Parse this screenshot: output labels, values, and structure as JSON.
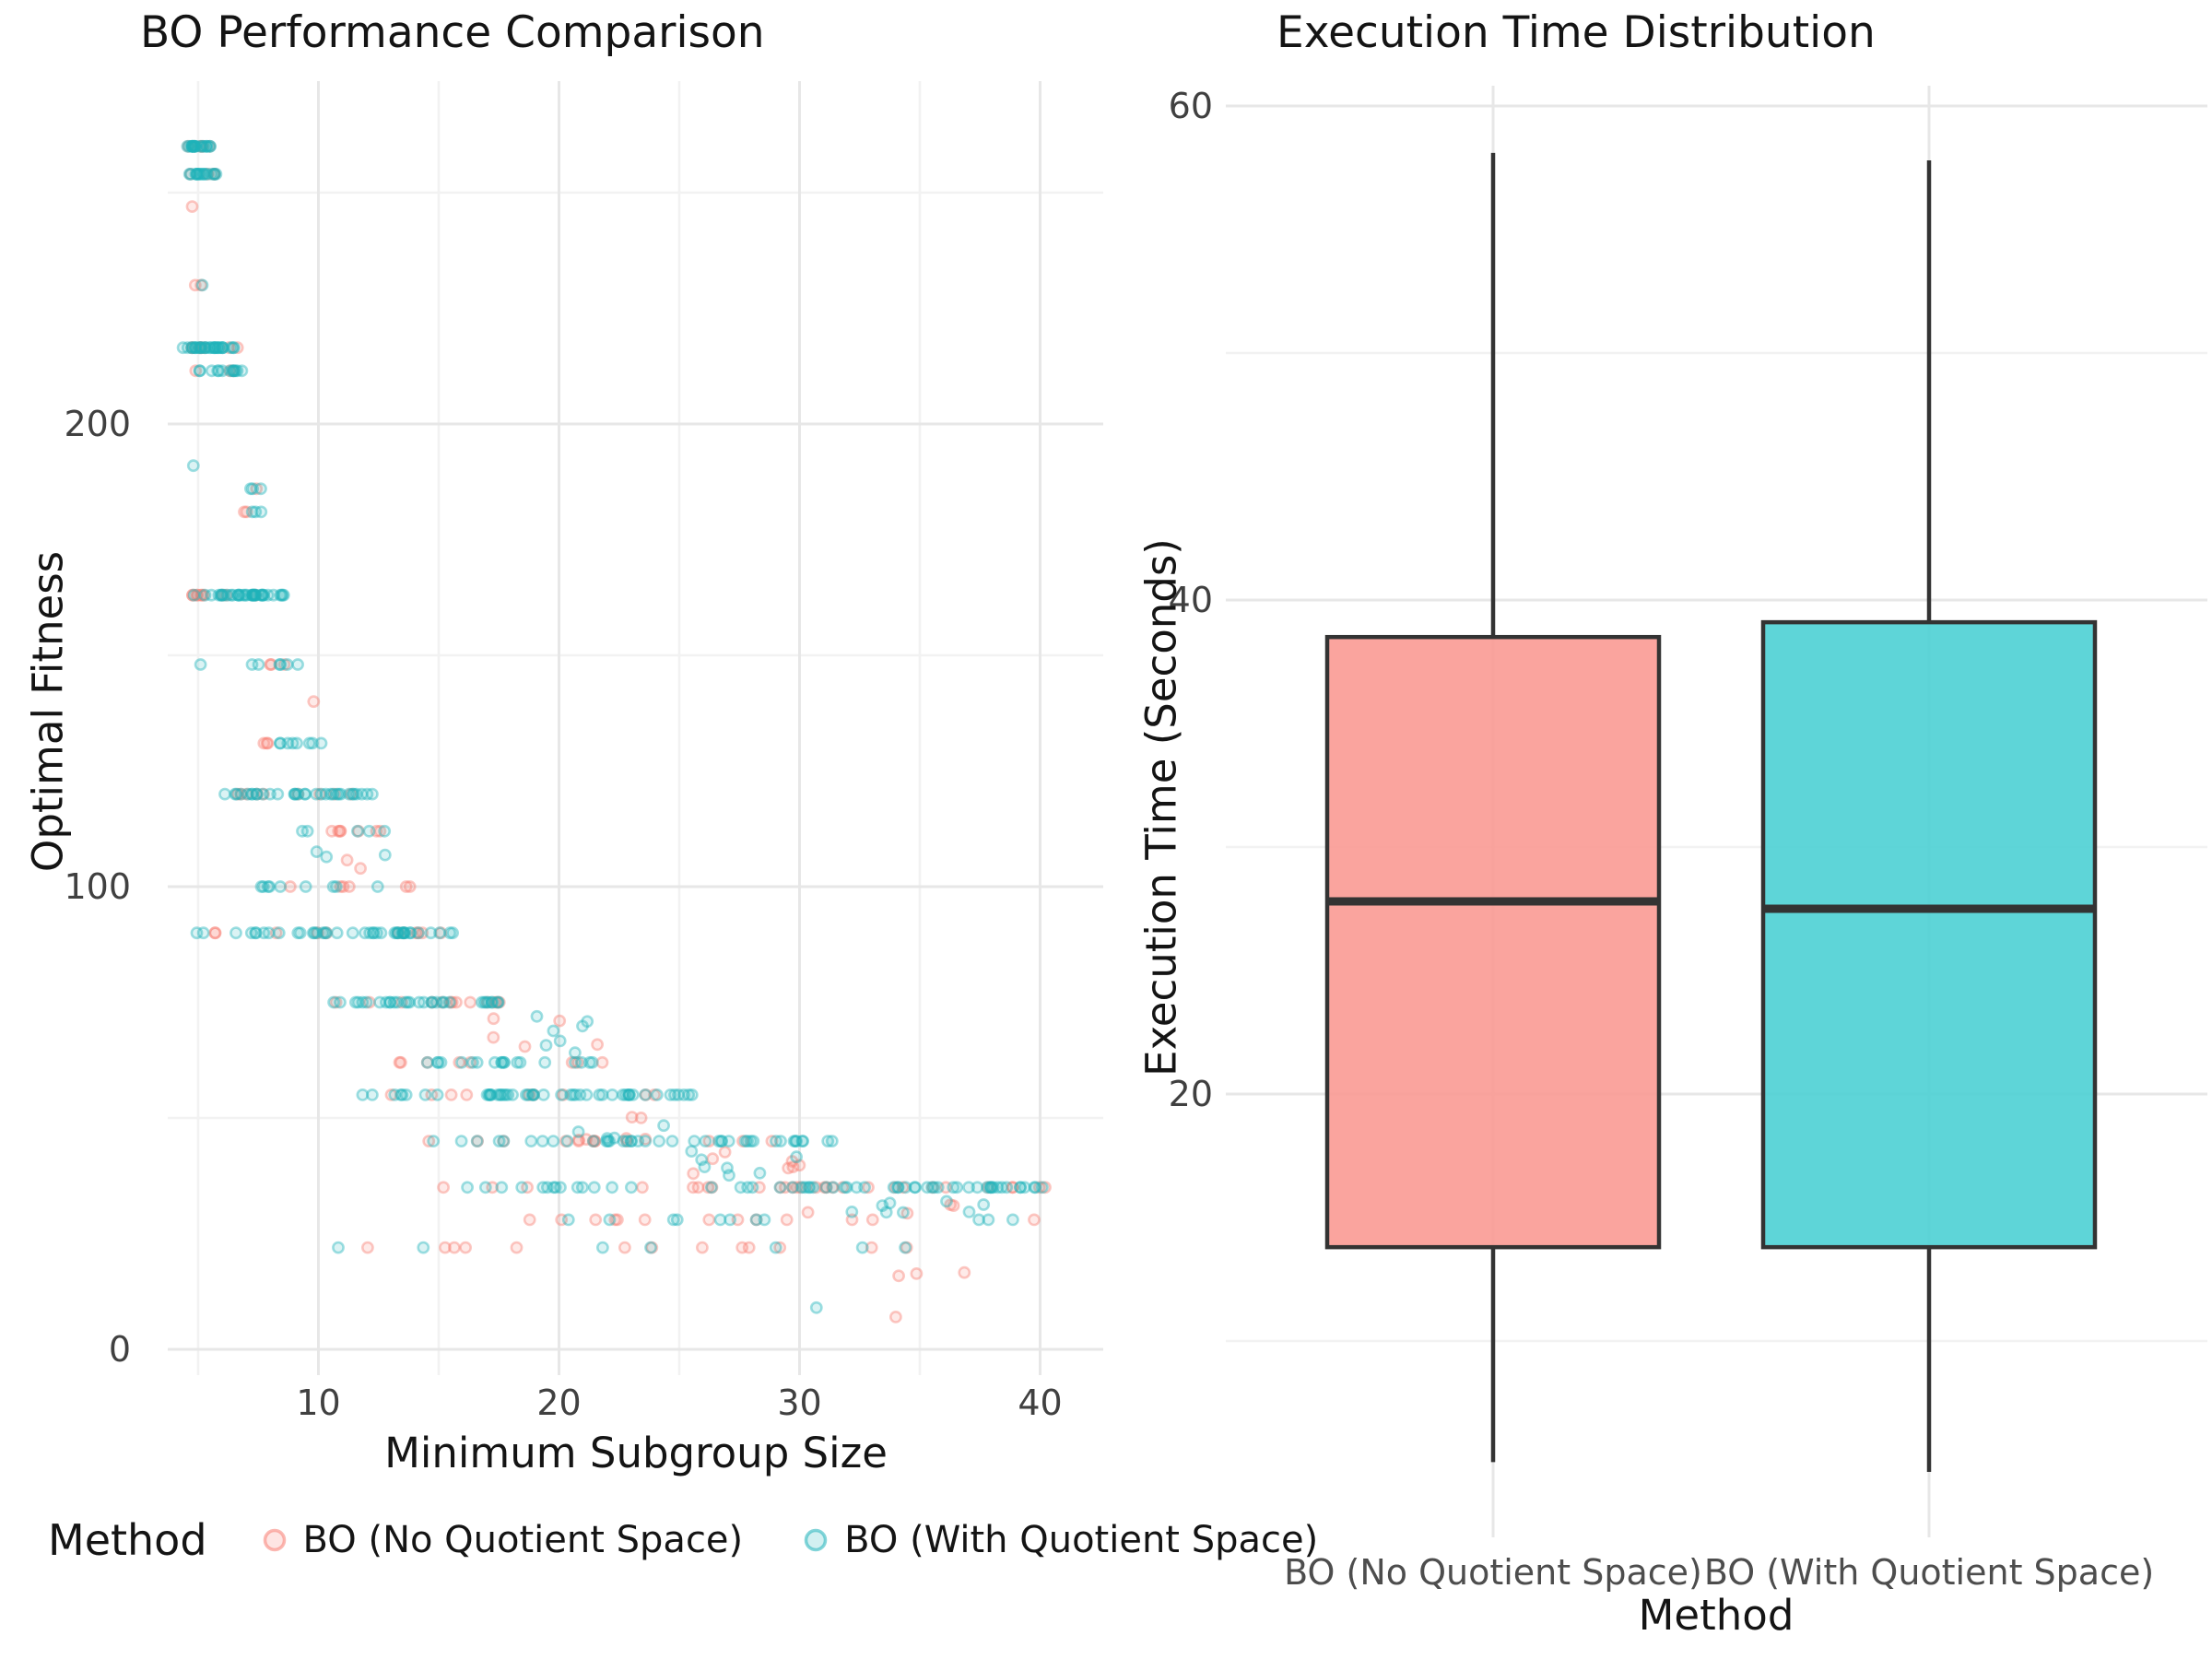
{
  "figure": {
    "background": "#ffffff"
  },
  "colors": {
    "title_text": "#141414",
    "tick_text": "#404040",
    "category_text": "#4d4d4d",
    "grid_major": "#e7e7e7",
    "grid_minor": "#f2f2f2",
    "box_border": "#333333",
    "pink_box_fill": "#F99A94",
    "teal_box_fill": "#4CD0D4",
    "pink_marker": "#F87E72",
    "teal_marker": "#1FB3BA"
  },
  "legend": {
    "title": "Method",
    "items": [
      {
        "label": "BO (No Quotient Space)",
        "color": "#F87E72"
      },
      {
        "label": "BO (With Quotient Space)",
        "color": "#1FB3BA"
      }
    ]
  },
  "chart_data": [
    {
      "type": "scatter",
      "title": "BO Performance Comparison",
      "xlabel": "Minimum Subgroup Size",
      "ylabel": "Optimal Fitness",
      "xlim": [
        3.7,
        42.6
      ],
      "ylim": [
        -5.6,
        274
      ],
      "x_major_ticks": [
        10,
        20,
        30,
        40
      ],
      "x_gridlines": [
        5,
        10,
        15,
        20,
        25,
        30,
        35,
        40
      ],
      "y_major_ticks": [
        0,
        100,
        200
      ],
      "y_gridlines_major": [
        0,
        100,
        200
      ],
      "y_gridlines_minor": [
        50,
        150,
        250
      ],
      "grid": true,
      "legend_position": "bottom-left",
      "series": [
        {
          "name": "BO (No Quotient Space)",
          "color": "#F87E72"
        },
        {
          "name": "BO (With Quotient Space)",
          "color": "#1FB3BA"
        }
      ],
      "marker": {
        "radius": 5.6,
        "stroke_width": 2.6,
        "stroke_alpha": 0.42,
        "fill_alpha": 0.16
      },
      "seed": 42,
      "bands_format": "[fitness_y, x_min, x_max, n_points, pink_fraction] - horizontal bands of jittered points",
      "bands": [
        [
          260,
          4.55,
          5.65,
          26,
          0.25
        ],
        [
          254,
          4.55,
          5.75,
          20,
          0.25
        ],
        [
          230,
          4.7,
          5.3,
          3,
          0.6
        ],
        [
          216.5,
          4.35,
          6.7,
          38,
          0.18
        ],
        [
          211.5,
          4.75,
          6.85,
          16,
          0.3
        ],
        [
          186,
          6.95,
          7.65,
          4,
          0.5
        ],
        [
          181,
          6.9,
          7.65,
          5,
          0.5
        ],
        [
          163,
          4.6,
          5.8,
          10,
          0.5
        ],
        [
          163,
          5.8,
          8.6,
          38,
          0.15
        ],
        [
          148,
          6.75,
          9.4,
          9,
          0.45
        ],
        [
          131,
          7.6,
          10.6,
          11,
          0.35
        ],
        [
          120,
          5.9,
          12.3,
          42,
          0.2
        ],
        [
          112,
          8.6,
          13.2,
          12,
          0.4
        ],
        [
          100,
          7.6,
          14.3,
          14,
          0.55
        ],
        [
          90,
          4.9,
          10.0,
          18,
          0.45
        ],
        [
          90,
          10.0,
          15.6,
          34,
          0.15
        ],
        [
          75,
          10.6,
          17.6,
          44,
          0.3
        ],
        [
          62,
          13.0,
          21.8,
          26,
          0.4
        ],
        [
          55,
          11.6,
          17.0,
          12,
          0.45
        ],
        [
          55,
          17.0,
          25.6,
          46,
          0.15
        ],
        [
          45,
          14.0,
          18.0,
          8,
          0.5
        ],
        [
          45,
          18.0,
          31.6,
          44,
          0.25
        ],
        [
          35,
          14.6,
          28.0,
          25,
          0.45
        ],
        [
          35,
          27.5,
          40.5,
          63,
          0.3
        ],
        [
          28,
          17.0,
          40.3,
          24,
          0.5
        ],
        [
          22,
          8.0,
          40.0,
          20,
          0.5
        ]
      ],
      "clouds_format": "[x_min, x_max, y_min, y_max, n_points, pink_fraction] - diffuse point clouds",
      "clouds": [
        [
          9.5,
          13,
          103,
          108,
          5,
          0.5
        ],
        [
          17,
          22,
          64,
          72,
          12,
          0.45
        ],
        [
          20.5,
          24.5,
          45,
          52,
          10,
          0.4
        ],
        [
          25,
          30,
          37,
          43,
          14,
          0.45
        ],
        [
          30,
          38,
          29,
          33,
          12,
          0.45
        ],
        [
          33,
          37,
          15,
          18,
          3,
          0.5
        ]
      ],
      "singles_format": "[x, y, series p=pink t=teal]",
      "singles": [
        [
          4.75,
          247,
          "p"
        ],
        [
          4.8,
          191,
          "t"
        ],
        [
          5.1,
          148,
          "t"
        ],
        [
          9.8,
          140,
          "p"
        ],
        [
          30.7,
          9,
          "t"
        ],
        [
          34,
          7,
          "p"
        ],
        [
          21.8,
          62,
          "p"
        ],
        [
          13.8,
          100,
          "p"
        ]
      ]
    },
    {
      "type": "box",
      "title": "Execution Time Distribution",
      "xlabel": "Method",
      "ylabel": "Execution Time (Seconds)",
      "categories": [
        "BO (No Quotient Space)",
        "BO (With Quotient Space)"
      ],
      "y_major_ticks": [
        20,
        40,
        60
      ],
      "y_gridlines_minor": [
        10,
        30,
        50
      ],
      "ylim": [
        2,
        61
      ],
      "grid": true,
      "box_fill_opacity": 0.9,
      "boxes": [
        {
          "category": "BO (No Quotient Space)",
          "fill": "#F99A94",
          "whisker_low": 5.1,
          "q1": 13.8,
          "median": 27.8,
          "q3": 38.5,
          "whisker_high": 58.1
        },
        {
          "category": "BO (With Quotient Space)",
          "fill": "#4CD0D4",
          "whisker_low": 4.7,
          "q1": 13.8,
          "median": 27.5,
          "q3": 39.1,
          "whisker_high": 57.8
        }
      ]
    }
  ]
}
